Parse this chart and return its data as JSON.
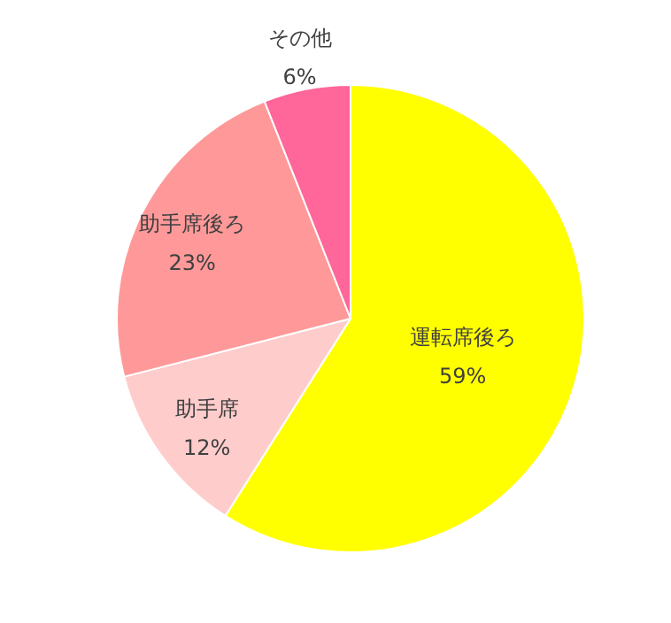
{
  "chart_data": {
    "type": "pie",
    "categories": [
      "運転席後ろ",
      "助手席",
      "助手席後ろ",
      "その他"
    ],
    "values": [
      59,
      12,
      23,
      6
    ],
    "colors": [
      "#ffff00",
      "#ffcccc",
      "#ff9999",
      "#ff6699"
    ],
    "value_labels": [
      "59%",
      "12%",
      "23%",
      "6%"
    ]
  }
}
